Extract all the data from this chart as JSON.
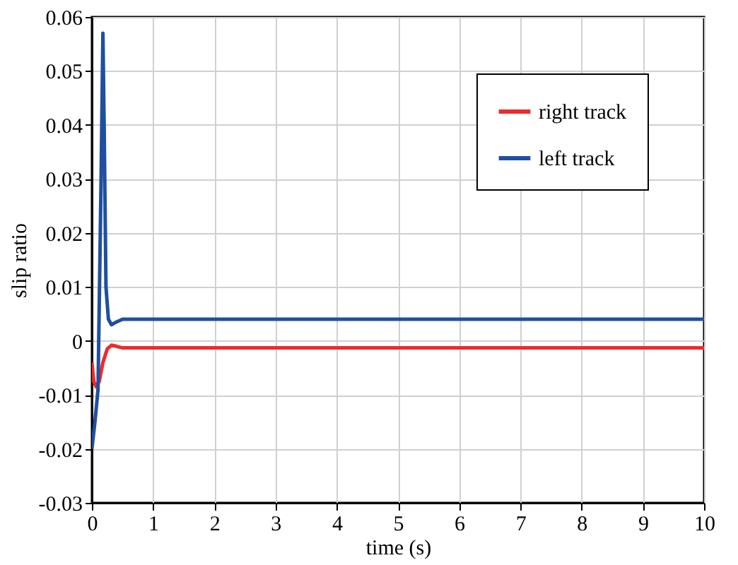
{
  "chart_data": {
    "type": "line",
    "xlabel": "time (s)",
    "ylabel": "slip ratio",
    "xlim": [
      0,
      10
    ],
    "xticks": [
      0,
      1,
      2,
      3,
      4,
      5,
      6,
      7,
      8,
      9,
      10
    ],
    "ylim": [
      -0.03,
      0.06
    ],
    "yticks": [
      -0.03,
      -0.02,
      -0.01,
      0,
      0.01,
      0.02,
      0.03,
      0.04,
      0.05,
      0.06
    ],
    "grid": true,
    "legend": "top right",
    "marker": "none",
    "line_style": "solid",
    "series": [
      {
        "name": "right track",
        "color": "#ee2b2b",
        "x": [
          0,
          0.03,
          0.07,
          0.12,
          0.18,
          0.25,
          0.32,
          0.4,
          0.5,
          0.7,
          1,
          2,
          4,
          6,
          8,
          10
        ],
        "values": [
          -0.004,
          -0.0075,
          -0.0085,
          -0.0075,
          -0.004,
          -0.0015,
          -0.0008,
          -0.001,
          -0.0013,
          -0.0013,
          -0.0013,
          -0.0013,
          -0.0013,
          -0.0013,
          -0.0013,
          -0.0013
        ]
      },
      {
        "name": "left track",
        "color": "#1f4fa0",
        "x": [
          0,
          0.05,
          0.1,
          0.15,
          0.18,
          0.2,
          0.23,
          0.27,
          0.32,
          0.4,
          0.5,
          0.7,
          1,
          2,
          4,
          6,
          8,
          10
        ],
        "values": [
          -0.02,
          -0.015,
          -0.009,
          0.03,
          0.057,
          0.04,
          0.01,
          0.004,
          0.003,
          0.0035,
          0.004,
          0.004,
          0.004,
          0.004,
          0.004,
          0.004,
          0.004,
          0.004
        ]
      }
    ]
  }
}
